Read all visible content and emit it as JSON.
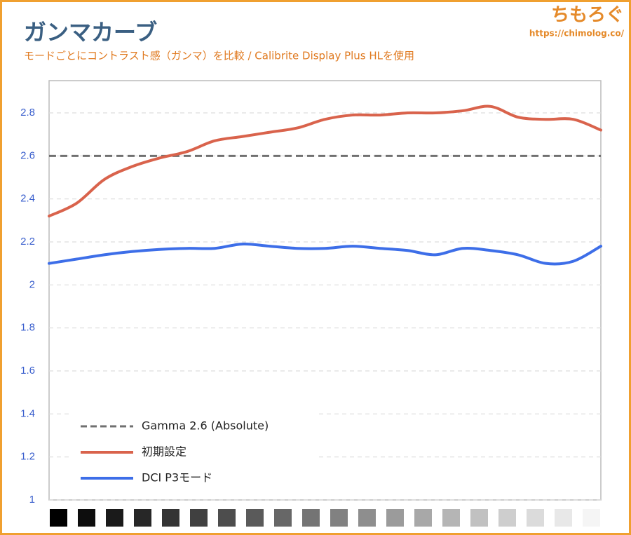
{
  "chart_data": {
    "type": "line",
    "title": "ガンマカーブ",
    "subtitle": "モードごとにコントラスト感（ガンマ）を比較 / Calibrite Display Plus HLを使用",
    "logo": "ちもろぐ",
    "url": "https://chimolog.co/",
    "categories": [
      null,
      null,
      null,
      null,
      null,
      null,
      null,
      null,
      null,
      null,
      null,
      null,
      null,
      null,
      null,
      null,
      null,
      null,
      null,
      null,
      null
    ],
    "series": [
      {
        "name": "Gamma 2.6 (Absolute)",
        "color": "#707070",
        "dashed": true,
        "values": [
          2.6,
          2.6,
          2.6,
          2.6,
          2.6,
          2.6,
          2.6,
          2.6,
          2.6,
          2.6,
          2.6,
          2.6,
          2.6,
          2.6,
          2.6,
          2.6,
          2.6,
          2.6,
          2.6,
          2.6,
          2.6
        ]
      },
      {
        "name": "初期設定",
        "color": "#d9634c",
        "dashed": false,
        "values": [
          2.32,
          2.38,
          2.49,
          2.55,
          2.59,
          2.62,
          2.67,
          2.69,
          2.71,
          2.73,
          2.77,
          2.79,
          2.79,
          2.8,
          2.8,
          2.81,
          2.83,
          2.78,
          2.77,
          2.77,
          2.72
        ]
      },
      {
        "name": "DCI P3モード",
        "color": "#3d6ee8",
        "dashed": false,
        "values": [
          2.1,
          2.12,
          2.14,
          2.155,
          2.165,
          2.17,
          2.17,
          2.19,
          2.18,
          2.17,
          2.17,
          2.18,
          2.17,
          2.16,
          2.14,
          2.17,
          2.16,
          2.14,
          2.1,
          2.11,
          2.18
        ]
      }
    ],
    "ylim": [
      1,
      2.95
    ],
    "yticks": [
      1,
      1.2,
      1.4,
      1.6,
      1.8,
      2,
      2.2,
      2.4,
      2.6,
      2.8
    ],
    "grid": true,
    "legend": "lower-left"
  }
}
